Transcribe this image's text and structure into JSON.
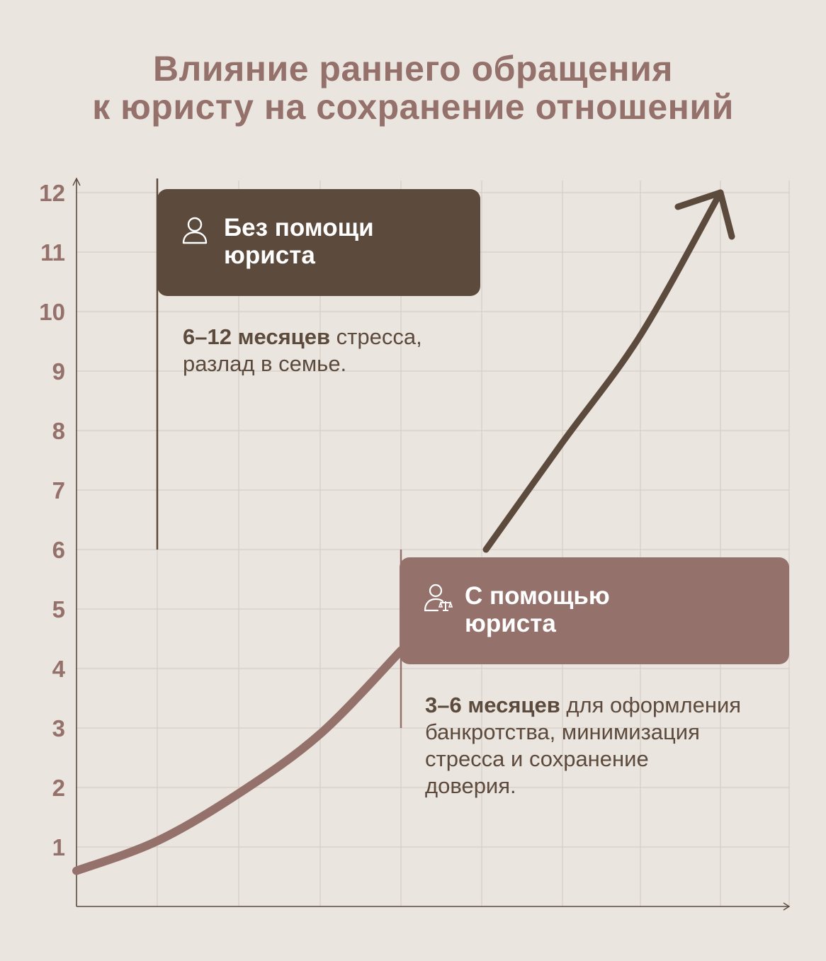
{
  "title": {
    "line1": "Влияние раннего обращения",
    "line2": "к юристу на сохранение отношений"
  },
  "colors": {
    "background": "#ebe5df",
    "grid": "#d6cfc8",
    "axis": "#5c4a3d",
    "without_lawyer": "#5c4a3d",
    "with_lawyer": "#95716c",
    "accent_text": "#95716c"
  },
  "boxes": {
    "without": {
      "icon": "person-icon",
      "title_line1": "Без помощи",
      "title_line2": "юриста",
      "desc_bold": "6–12 месяцев",
      "desc_rest1": " стресса,",
      "desc_line2": "разлад в семье."
    },
    "with": {
      "icon": "lawyer-scales-icon",
      "title_line1": "С помощью",
      "title_line2": "юриста",
      "desc_bold": "3–6 месяцев",
      "desc_rest1": " для оформления",
      "desc_line2": "банкротства, минимизация",
      "desc_line3": "стресса и сохранение",
      "desc_line4": "доверия."
    }
  },
  "chart_data": {
    "type": "line",
    "title": "Влияние раннего обращения к юристу на сохранение отношений",
    "xlabel": "",
    "ylabel": "",
    "ylim": [
      0,
      12
    ],
    "yticks": [
      1,
      2,
      3,
      4,
      5,
      6,
      7,
      8,
      9,
      10,
      11,
      12
    ],
    "grid": true,
    "series": [
      {
        "name": "С помощью юриста",
        "points": [
          [
            0,
            0.6
          ],
          [
            1,
            1.1
          ],
          [
            2,
            1.9
          ],
          [
            3,
            2.9
          ],
          [
            4,
            4.3
          ]
        ]
      },
      {
        "name": "Без помощи юриста",
        "points": [
          [
            5,
            6.0
          ],
          [
            6,
            7.8
          ],
          [
            7,
            9.6
          ],
          [
            8,
            12.0
          ]
        ]
      }
    ],
    "ranges": [
      {
        "name": "Без помощи юриста",
        "y": [
          6,
          12
        ]
      },
      {
        "name": "С помощью юриста",
        "y": [
          3,
          6
        ]
      }
    ]
  }
}
